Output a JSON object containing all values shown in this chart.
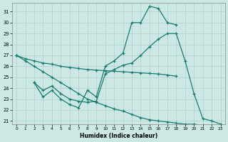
{
  "xlabel": "Humidex (Indice chaleur)",
  "bg_color": "#cce8e5",
  "line_color": "#1a7a6e",
  "grid_color": "#b0d0cc",
  "ylim": [
    21,
    31.5
  ],
  "xlim": [
    -0.5,
    23.5
  ],
  "yticks": [
    21,
    22,
    23,
    24,
    25,
    26,
    27,
    28,
    29,
    30,
    31
  ],
  "xticks": [
    0,
    1,
    2,
    3,
    4,
    5,
    6,
    7,
    8,
    9,
    10,
    11,
    12,
    13,
    14,
    15,
    16,
    17,
    18,
    19,
    20,
    21,
    22,
    23
  ],
  "lines": [
    {
      "x": [
        0,
        1,
        2,
        3,
        4,
        5,
        6,
        7,
        8,
        9,
        10,
        11,
        12,
        13,
        14,
        15,
        16,
        17,
        18
      ],
      "y": [
        27.0,
        26.7,
        26.5,
        26.3,
        26.2,
        26.0,
        25.9,
        25.8,
        25.7,
        25.65,
        25.6,
        25.55,
        25.5,
        25.45,
        25.4,
        25.35,
        25.3,
        25.2,
        25.1
      ]
    },
    {
      "x": [
        2,
        3,
        4,
        5,
        6,
        7,
        8,
        9,
        10,
        11,
        12,
        13,
        14,
        15,
        16,
        17,
        18
      ],
      "y": [
        24.5,
        23.2,
        23.8,
        23.0,
        22.5,
        22.2,
        23.8,
        23.2,
        26.0,
        26.5,
        27.2,
        30.0,
        30.0,
        31.5,
        31.3,
        30.0,
        29.8
      ]
    },
    {
      "x": [
        2,
        3,
        4,
        5,
        6,
        7,
        8,
        9,
        10,
        11,
        12,
        13,
        14,
        15,
        16,
        17,
        18,
        19,
        20,
        21,
        22,
        23
      ],
      "y": [
        24.5,
        23.8,
        24.2,
        23.5,
        23.0,
        22.8,
        22.7,
        22.8,
        25.3,
        25.7,
        26.1,
        26.3,
        27.0,
        27.8,
        28.5,
        29.0,
        29.0,
        26.5,
        23.5,
        21.2,
        21.0,
        20.7
      ]
    },
    {
      "x": [
        0,
        1,
        2,
        3,
        4,
        5,
        6,
        7,
        8,
        9,
        10,
        11,
        12,
        13,
        14,
        15,
        16,
        17,
        18,
        19,
        20,
        21,
        22,
        23
      ],
      "y": [
        27.0,
        26.5,
        26.0,
        25.5,
        25.0,
        24.5,
        24.0,
        23.5,
        23.0,
        22.7,
        22.4,
        22.1,
        21.9,
        21.6,
        21.3,
        21.1,
        21.0,
        20.9,
        20.8,
        20.7,
        20.7,
        20.6,
        20.6,
        20.5
      ]
    }
  ]
}
